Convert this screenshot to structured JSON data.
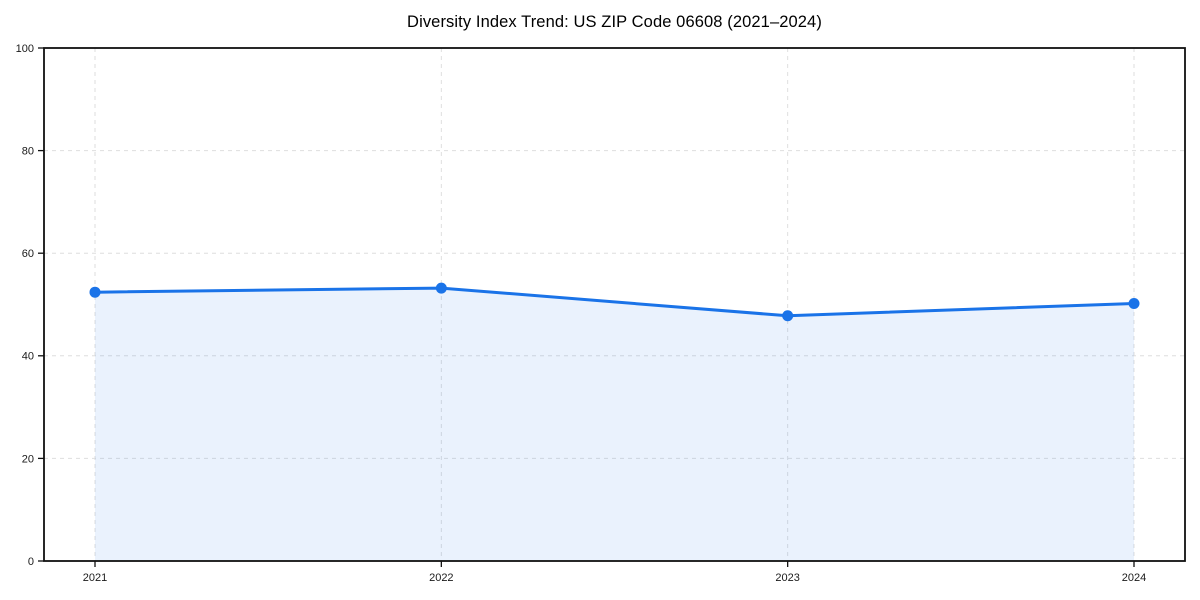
{
  "chart_data": {
    "type": "line",
    "title": "Diversity Index Trend: US ZIP Code 06608 (2021–2024)",
    "categories": [
      "2021",
      "2022",
      "2023",
      "2024"
    ],
    "series": [
      {
        "name": "Diversity Index",
        "values": [
          52.4,
          53.2,
          47.8,
          50.2
        ]
      }
    ],
    "xlabel": "",
    "ylabel": "",
    "ylim": [
      0,
      100
    ],
    "yticks": [
      0,
      20,
      40,
      60,
      80,
      100
    ],
    "grid": true,
    "grid_style": "dashed",
    "legend": false,
    "area_fill": true,
    "marker": "circle",
    "colors": {
      "line": "#1a73e8",
      "marker": "#1a73e8",
      "area": "rgba(26,115,232,0.09)",
      "grid": "#dedede",
      "frame": "#111111",
      "tick": "#111111",
      "text": "#1a1a1a",
      "background": "#ffffff"
    }
  }
}
